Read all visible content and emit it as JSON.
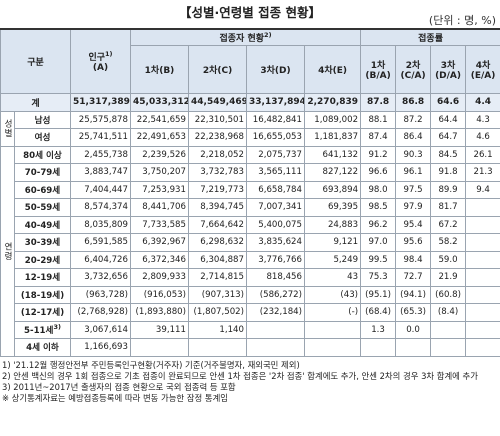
{
  "header": {
    "title": "【성별·연령별 접종 현황】",
    "unit": "(단위 : 명, %)"
  },
  "table": {
    "corner": "구분",
    "population": {
      "label": "인구",
      "note": "1)",
      "code": "(A)"
    },
    "vaccinated": {
      "label": "접종자 현황",
      "note": "2)",
      "columns": [
        "1차(B)",
        "2차(C)",
        "3차(D)",
        "4차(E)"
      ]
    },
    "rate": {
      "label": "접종률",
      "columns": [
        {
          "label": "1차",
          "code": "(B/A)"
        },
        {
          "label": "2차",
          "code": "(C/A)"
        },
        {
          "label": "3차",
          "code": "(D/A)"
        },
        {
          "label": "4차",
          "code": "(E/A)"
        }
      ]
    },
    "total": {
      "label": "계",
      "cells": [
        "51,317,389",
        "45,033,312",
        "44,549,469",
        "33,137,894",
        "2,270,839",
        "87.8",
        "86.8",
        "64.6",
        "4.4"
      ]
    },
    "groups": [
      {
        "label": "성별",
        "rows": [
          {
            "label": "남성",
            "cells": [
              "25,575,878",
              "22,541,659",
              "22,310,501",
              "16,482,841",
              "1,089,002",
              "88.1",
              "87.2",
              "64.4",
              "4.3"
            ]
          },
          {
            "label": "여성",
            "cells": [
              "25,741,511",
              "22,491,653",
              "22,238,968",
              "16,655,053",
              "1,181,837",
              "87.4",
              "86.4",
              "64.7",
              "4.6"
            ]
          }
        ]
      },
      {
        "label": "연령",
        "rows": [
          {
            "label": "80세 이상",
            "cells": [
              "2,455,738",
              "2,239,526",
              "2,218,052",
              "2,075,737",
              "641,132",
              "91.2",
              "90.3",
              "84.5",
              "26.1"
            ]
          },
          {
            "label": "70-79세",
            "cells": [
              "3,883,747",
              "3,750,207",
              "3,732,783",
              "3,565,111",
              "827,122",
              "96.6",
              "96.1",
              "91.8",
              "21.3"
            ]
          },
          {
            "label": "60-69세",
            "cells": [
              "7,404,447",
              "7,253,931",
              "7,219,773",
              "6,658,784",
              "693,894",
              "98.0",
              "97.5",
              "89.9",
              "9.4"
            ]
          },
          {
            "label": "50-59세",
            "cells": [
              "8,574,374",
              "8,441,706",
              "8,394,745",
              "7,007,341",
              "69,395",
              "98.5",
              "97.9",
              "81.7",
              null
            ]
          },
          {
            "label": "40-49세",
            "cells": [
              "8,035,809",
              "7,733,585",
              "7,664,642",
              "5,400,075",
              "24,883",
              "96.2",
              "95.4",
              "67.2",
              null
            ]
          },
          {
            "label": "30-39세",
            "cells": [
              "6,591,585",
              "6,392,967",
              "6,298,632",
              "3,835,624",
              "9,121",
              "97.0",
              "95.6",
              "58.2",
              null
            ]
          },
          {
            "label": "20-29세",
            "cells": [
              "6,404,726",
              "6,372,346",
              "6,304,887",
              "3,776,766",
              "5,249",
              "99.5",
              "98.4",
              "59.0",
              null
            ]
          },
          {
            "label": "12-19세",
            "cells": [
              "3,732,656",
              "2,809,933",
              "2,714,815",
              "818,456",
              "43",
              "75.3",
              "72.7",
              "21.9",
              null
            ]
          },
          {
            "label": "(18-19세)",
            "cells": [
              "(963,728)",
              "(916,053)",
              "(907,313)",
              "(586,272)",
              "(43)",
              "(95.1)",
              "(94.1)",
              "(60.8)",
              null
            ]
          },
          {
            "label": "(12-17세)",
            "cells": [
              "(2,768,928)",
              "(1,893,880)",
              "(1,807,502)",
              "(232,184)",
              "(-)",
              "(68.4)",
              "(65.3)",
              "(8.4)",
              null
            ]
          },
          {
            "label": "5-11세",
            "note": "3)",
            "cells": [
              "3,067,614",
              "39,111",
              "1,140",
              null,
              null,
              "1.3",
              "0.0",
              null,
              null
            ]
          },
          {
            "label": "4세 이하",
            "cells": [
              "1,166,693",
              null,
              null,
              null,
              null,
              null,
              null,
              null,
              null
            ]
          }
        ]
      }
    ]
  },
  "footnotes": [
    "1) '21.12월 행정안전부 주민등록인구현황(거주자) 기준(거주불명자, 재외국민 제외)",
    "2) 안센 백신의 경우 1회 접종으로 기초 접종이 완료되므로 안센 1차 접종은 '2차 접종' 합계에도 추가, 안센 2차의 경우 3차 합계에 추가",
    "3) 2011년~2017년 출생자의 접종 현황으로 국외 접종력 등 포함",
    "※ 상기통계자료는 예방접종등록에 따라 변동 가능한 잠정 통계임"
  ]
}
